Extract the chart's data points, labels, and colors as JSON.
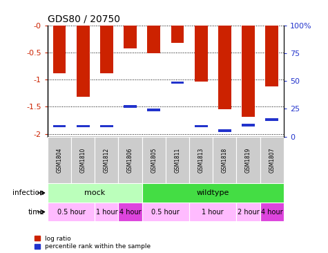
{
  "title": "GDS80 / 20750",
  "samples": [
    "GSM1804",
    "GSM1810",
    "GSM1812",
    "GSM1806",
    "GSM1805",
    "GSM1811",
    "GSM1813",
    "GSM1818",
    "GSM1819",
    "GSM1807"
  ],
  "log_ratio": [
    -0.88,
    -1.32,
    -0.88,
    -0.42,
    -0.51,
    -0.32,
    -1.03,
    -1.55,
    -1.68,
    -1.13
  ],
  "percentile": [
    7,
    7,
    7,
    25,
    22,
    47,
    7,
    3,
    8,
    13
  ],
  "bar_color": "#cc2200",
  "blue_color": "#2233cc",
  "ylim_min": -2.05,
  "ylim_max": 0.0,
  "yticks": [
    -2.0,
    -1.5,
    -1.0,
    -0.5,
    0.0
  ],
  "ytick_labels": [
    "-2",
    "-1.5",
    "-1",
    "-0.5",
    "-0"
  ],
  "right_ytick_labels": [
    "0",
    "25",
    "50",
    "75",
    "100%"
  ],
  "infection_groups": [
    {
      "label": "mock",
      "start": 0,
      "end": 4,
      "color": "#bbffbb"
    },
    {
      "label": "wildtype",
      "start": 4,
      "end": 10,
      "color": "#44dd44"
    }
  ],
  "time_groups": [
    {
      "label": "0.5 hour",
      "start": 0,
      "end": 2,
      "color": "#ffbbff"
    },
    {
      "label": "1 hour",
      "start": 2,
      "end": 3,
      "color": "#ffbbff"
    },
    {
      "label": "4 hour",
      "start": 3,
      "end": 4,
      "color": "#dd44dd"
    },
    {
      "label": "0.5 hour",
      "start": 4,
      "end": 6,
      "color": "#ffbbff"
    },
    {
      "label": "1 hour",
      "start": 6,
      "end": 8,
      "color": "#ffbbff"
    },
    {
      "label": "2 hour",
      "start": 8,
      "end": 9,
      "color": "#ffbbff"
    },
    {
      "label": "4 hour",
      "start": 9,
      "end": 10,
      "color": "#dd44dd"
    }
  ]
}
